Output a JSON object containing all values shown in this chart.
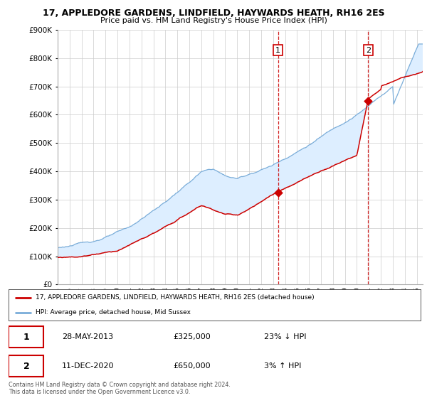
{
  "title": "17, APPLEDORE GARDENS, LINDFIELD, HAYWARDS HEATH, RH16 2ES",
  "subtitle": "Price paid vs. HM Land Registry's House Price Index (HPI)",
  "legend_line1": "17, APPLEDORE GARDENS, LINDFIELD, HAYWARDS HEATH, RH16 2ES (detached house)",
  "legend_line2": "HPI: Average price, detached house, Mid Sussex",
  "sale1_date": "28-MAY-2013",
  "sale1_price": 325000,
  "sale1_pct": "23% ↓ HPI",
  "sale1_year": 2013.41,
  "sale2_date": "11-DEC-2020",
  "sale2_price": 650000,
  "sale2_pct": "3% ↑ HPI",
  "sale2_year": 2020.95,
  "ylim": [
    0,
    900000
  ],
  "xlim_start": 1995.0,
  "xlim_end": 2025.5,
  "yticks": [
    0,
    100000,
    200000,
    300000,
    400000,
    500000,
    600000,
    700000,
    800000,
    900000
  ],
  "xticks": [
    1995,
    1996,
    1997,
    1998,
    1999,
    2000,
    2001,
    2002,
    2003,
    2004,
    2005,
    2006,
    2007,
    2008,
    2009,
    2010,
    2011,
    2012,
    2013,
    2014,
    2015,
    2016,
    2017,
    2018,
    2019,
    2020,
    2021,
    2022,
    2023,
    2024,
    2025
  ],
  "line_color_red": "#cc0000",
  "line_color_blue": "#7aadd9",
  "fill_color_blue": "#ddeeff",
  "background_color": "#ffffff",
  "grid_color": "#cccccc",
  "footer": "Contains HM Land Registry data © Crown copyright and database right 2024.\nThis data is licensed under the Open Government Licence v3.0."
}
